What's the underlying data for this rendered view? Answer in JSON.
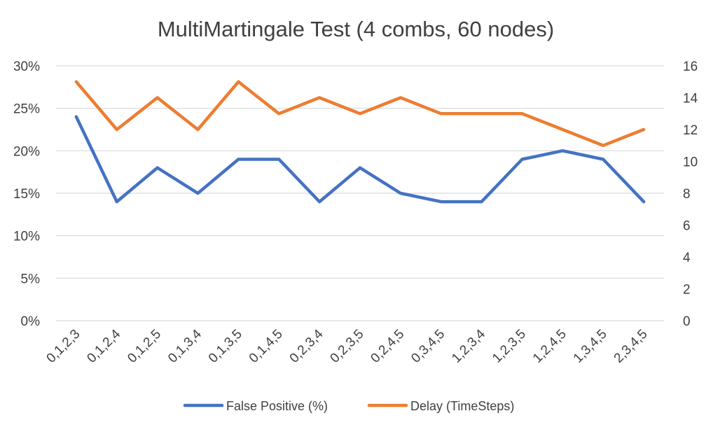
{
  "chart_data": {
    "type": "line",
    "title": "MultiMartingale Test (4 combs, 60 nodes)",
    "categories": [
      "0,1,2,3",
      "0,1,2,4",
      "0,1,2,5",
      "0,1,3,4",
      "0,1,3,5",
      "0,1,4,5",
      "0,2,3,4",
      "0,2,3,5",
      "0,2,4,5",
      "0,3,4,5",
      "1,2,3,4",
      "1,2,3,5",
      "1,2,4,5",
      "1,3,4,5",
      "2,3,4,5"
    ],
    "series": [
      {
        "name": "False Positive (%)",
        "axis": "left",
        "color": "#4472C4",
        "values": [
          24,
          14,
          18,
          15,
          19,
          19,
          14,
          18,
          15,
          14,
          14,
          19,
          20,
          19,
          14
        ]
      },
      {
        "name": "Delay (TimeSteps)",
        "axis": "right",
        "color": "#ED7D31",
        "values": [
          15,
          12,
          14,
          12,
          15,
          13,
          14,
          13,
          14,
          13,
          13,
          13,
          12,
          11,
          12
        ]
      }
    ],
    "y_left": {
      "min": 0,
      "max": 30,
      "ticks": [
        0,
        5,
        10,
        15,
        20,
        25,
        30
      ],
      "tick_labels": [
        "0%",
        "5%",
        "10%",
        "15%",
        "20%",
        "25%",
        "30%"
      ]
    },
    "y_right": {
      "min": 0,
      "max": 16,
      "ticks": [
        0,
        2,
        4,
        6,
        8,
        10,
        12,
        14,
        16
      ],
      "tick_labels": [
        "0",
        "2",
        "4",
        "6",
        "8",
        "10",
        "12",
        "14",
        "16"
      ]
    },
    "grid": true,
    "legend_position": "bottom"
  }
}
